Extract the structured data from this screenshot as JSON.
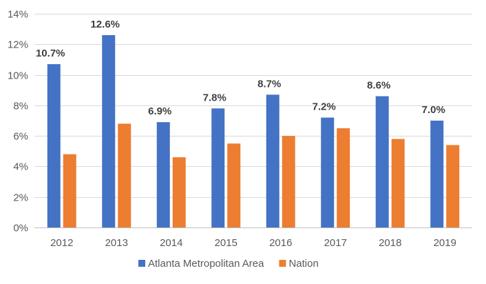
{
  "chart_data": {
    "type": "bar",
    "categories": [
      "2012",
      "2013",
      "2014",
      "2015",
      "2016",
      "2017",
      "2018",
      "2019"
    ],
    "series": [
      {
        "name": "Atlanta Metropolitan Area",
        "color": "#4472C4",
        "values": [
          10.7,
          12.6,
          6.9,
          7.8,
          8.7,
          7.2,
          8.6,
          7.0
        ],
        "data_labels": [
          "10.7%",
          "12.6%",
          "6.9%",
          "7.8%",
          "8.7%",
          "7.2%",
          "8.6%",
          "7.0%"
        ]
      },
      {
        "name": "Nation",
        "color": "#ED7D31",
        "values": [
          4.8,
          6.8,
          4.6,
          5.5,
          6.0,
          6.5,
          5.8,
          5.4
        ]
      }
    ],
    "ylim": [
      0,
      14
    ],
    "yticks": [
      "0%",
      "2%",
      "4%",
      "6%",
      "8%",
      "10%",
      "12%",
      "14%"
    ],
    "ytick_values": [
      0,
      2,
      4,
      6,
      8,
      10,
      12,
      14
    ],
    "grid": true,
    "legend_position": "bottom"
  }
}
